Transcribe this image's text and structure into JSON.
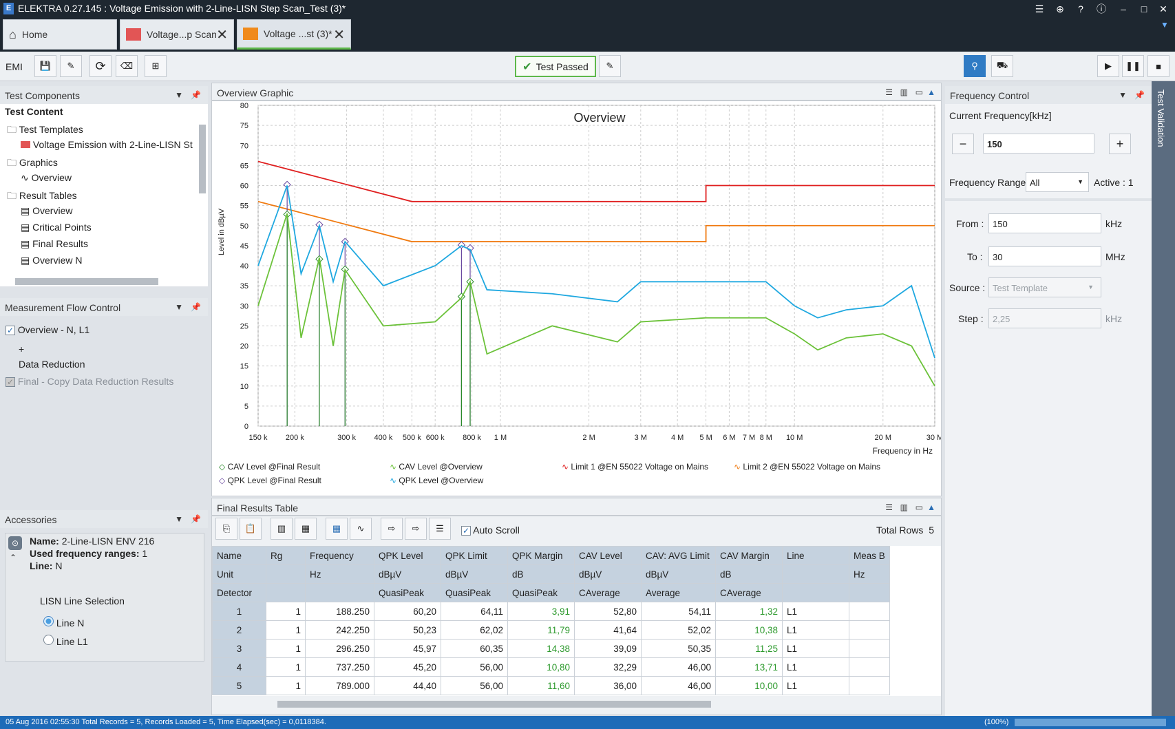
{
  "app": {
    "title": "ELEKTRA 0.27.145 : Voltage Emission with 2-Line-LISN Step Scan_Test (3)*",
    "logo": "E"
  },
  "tabs": [
    {
      "label": "Home"
    },
    {
      "label": "Voltage...p Scan"
    },
    {
      "label": "Voltage ...st (3)*"
    }
  ],
  "toolbar": {
    "mode": "EMI",
    "test_status": "Test Passed"
  },
  "test_components": {
    "header": "Test Components",
    "title": "Test Content",
    "items": [
      "Test Templates",
      "Voltage Emission with 2-Line-LISN St",
      "Graphics",
      "Overview",
      "Result Tables",
      "Overview",
      "Critical Points",
      "Final Results",
      "Overview N"
    ]
  },
  "flow": {
    "header": "Measurement Flow Control",
    "item1": "Overview - N, L1",
    "plus": "+",
    "item2": "Data Reduction",
    "item3": "Final - Copy Data Reduction Results"
  },
  "accessories": {
    "header": "Accessories",
    "name_label": "Name:",
    "name": "2-Line-LISN ENV 216",
    "ranges_label": "Used frequency ranges:",
    "ranges": "1",
    "line_label": "Line:",
    "line": "N",
    "lisn_title": "LISN Line Selection",
    "opt1": "Line N",
    "opt2": "Line L1"
  },
  "graph": {
    "header": "Overview Graphic",
    "title": "Overview",
    "ylabel": "Level in dBµV",
    "xlabel": "Frequency in Hz",
    "yticks": [
      "80",
      "75",
      "70",
      "65",
      "60",
      "55",
      "50",
      "45",
      "40",
      "35",
      "30",
      "25",
      "20",
      "15",
      "10",
      "5",
      "0"
    ],
    "xticks": [
      "150 k",
      "200 k",
      "300 k",
      "400 k",
      "500 k",
      "600 k",
      "800 k",
      "1 M",
      "2 M",
      "3 M",
      "4 M",
      "5 M",
      "6 M",
      "7 M",
      "8 M",
      "10 M",
      "20 M",
      "30 M"
    ],
    "legend": [
      "CAV Level @Final Result",
      "CAV Level @Overview",
      "Limit 1 @EN 55022 Voltage on Mains",
      "Limit 2 @EN 55022 Voltage on Mains",
      "QPK Level @Final Result",
      "QPK Level @Overview"
    ]
  },
  "chart_data": {
    "type": "line",
    "title": "Overview",
    "xlabel": "Frequency in Hz",
    "ylabel": "Level in dBµV",
    "xscale": "log",
    "xlim": [
      150000,
      30000000
    ],
    "ylim": [
      0,
      80
    ],
    "series": [
      {
        "name": "Limit 1 @EN 55022 Voltage on Mains",
        "color": "#e02020",
        "x": [
          150000,
          500000,
          500000,
          5000000,
          5000000,
          30000000
        ],
        "y": [
          66,
          56,
          56,
          56,
          60,
          60
        ]
      },
      {
        "name": "Limit 2 @EN 55022 Voltage on Mains",
        "color": "#f07a10",
        "x": [
          150000,
          500000,
          500000,
          5000000,
          5000000,
          30000000
        ],
        "y": [
          56,
          46,
          46,
          46,
          50,
          50
        ]
      },
      {
        "name": "QPK Level @Final Result",
        "color": "#6a4aa0",
        "x": [
          188250,
          242250,
          296250,
          737250,
          789000
        ],
        "y": [
          60.2,
          50.23,
          45.97,
          45.2,
          44.4
        ]
      },
      {
        "name": "CAV Level @Final Result",
        "color": "#2a8a2a",
        "x": [
          188250,
          242250,
          296250,
          737250,
          789000
        ],
        "y": [
          52.8,
          41.64,
          39.09,
          32.29,
          36.0
        ]
      },
      {
        "name": "QPK Level @Overview",
        "color": "#1fa8e0",
        "x": [
          150000,
          188250,
          210000,
          242250,
          270000,
          296250,
          400000,
          600000,
          737250,
          789000,
          900000,
          1500000,
          2500000,
          3000000,
          5000000,
          8000000,
          10000000,
          12000000,
          15000000,
          20000000,
          25000000,
          30000000
        ],
        "y": [
          40,
          60,
          38,
          50,
          36,
          46,
          35,
          40,
          45,
          44,
          34,
          33,
          31,
          36,
          36,
          36,
          30,
          27,
          29,
          30,
          35,
          17
        ]
      },
      {
        "name": "CAV Level @Overview",
        "color": "#6cc23a",
        "x": [
          150000,
          188250,
          210000,
          242250,
          270000,
          296250,
          400000,
          600000,
          737250,
          789000,
          900000,
          1500000,
          2500000,
          3000000,
          5000000,
          8000000,
          10000000,
          12000000,
          15000000,
          20000000,
          25000000,
          30000000
        ],
        "y": [
          30,
          53,
          22,
          42,
          20,
          39,
          25,
          26,
          32,
          36,
          18,
          25,
          21,
          26,
          27,
          27,
          23,
          19,
          22,
          23,
          20,
          10
        ]
      }
    ]
  },
  "freq": {
    "header": "Frequency Control",
    "current_label": "Current Frequency[kHz]",
    "current": "150",
    "minus": "−",
    "plus": "+",
    "range_label": "Frequency Range",
    "range": "All",
    "active": "Active : 1",
    "from_label": "From :",
    "from": "150",
    "from_unit": "kHz",
    "to_label": "To :",
    "to": "30",
    "to_unit": "MHz",
    "source_label": "Source :",
    "source": "Test Template",
    "step_label": "Step :",
    "step": "2,25",
    "step_unit": "kHz",
    "side_tab": "Test Validation"
  },
  "table": {
    "header": "Final Results Table",
    "auto_scroll": "Auto Scroll",
    "total_label": "Total Rows",
    "total": "5",
    "columns": [
      "Name",
      "Rg",
      "Frequency",
      "QPK Level",
      "QPK Limit",
      "QPK Margin",
      "CAV Level",
      "CAV: AVG Limit",
      "CAV Margin",
      "Line",
      "Meas B"
    ],
    "units": [
      "Unit",
      "",
      "Hz",
      "dBµV",
      "dBµV",
      "dB",
      "dBµV",
      "dBµV",
      "dB",
      "",
      "Hz"
    ],
    "detectors": [
      "Detector",
      "",
      "",
      "QuasiPeak",
      "QuasiPeak",
      "QuasiPeak",
      "CAverage",
      "Average",
      "CAverage",
      "",
      ""
    ],
    "rows": [
      [
        "1",
        "1",
        "188.250",
        "60,20",
        "64,11",
        "3,91",
        "52,80",
        "54,11",
        "1,32",
        "L1",
        ""
      ],
      [
        "2",
        "1",
        "242.250",
        "50,23",
        "62,02",
        "11,79",
        "41,64",
        "52,02",
        "10,38",
        "L1",
        ""
      ],
      [
        "3",
        "1",
        "296.250",
        "45,97",
        "60,35",
        "14,38",
        "39,09",
        "50,35",
        "11,25",
        "L1",
        ""
      ],
      [
        "4",
        "1",
        "737.250",
        "45,20",
        "56,00",
        "10,80",
        "32,29",
        "46,00",
        "13,71",
        "L1",
        ""
      ],
      [
        "5",
        "1",
        "789.000",
        "44,40",
        "56,00",
        "11,60",
        "36,00",
        "46,00",
        "10,00",
        "L1",
        ""
      ]
    ]
  },
  "status": {
    "left": "05 Aug 2016 02:55:30   Total Records = 5, Records Loaded = 5, Time Elapsed(sec) = 0,0118384.",
    "zoom": "(100%)"
  }
}
